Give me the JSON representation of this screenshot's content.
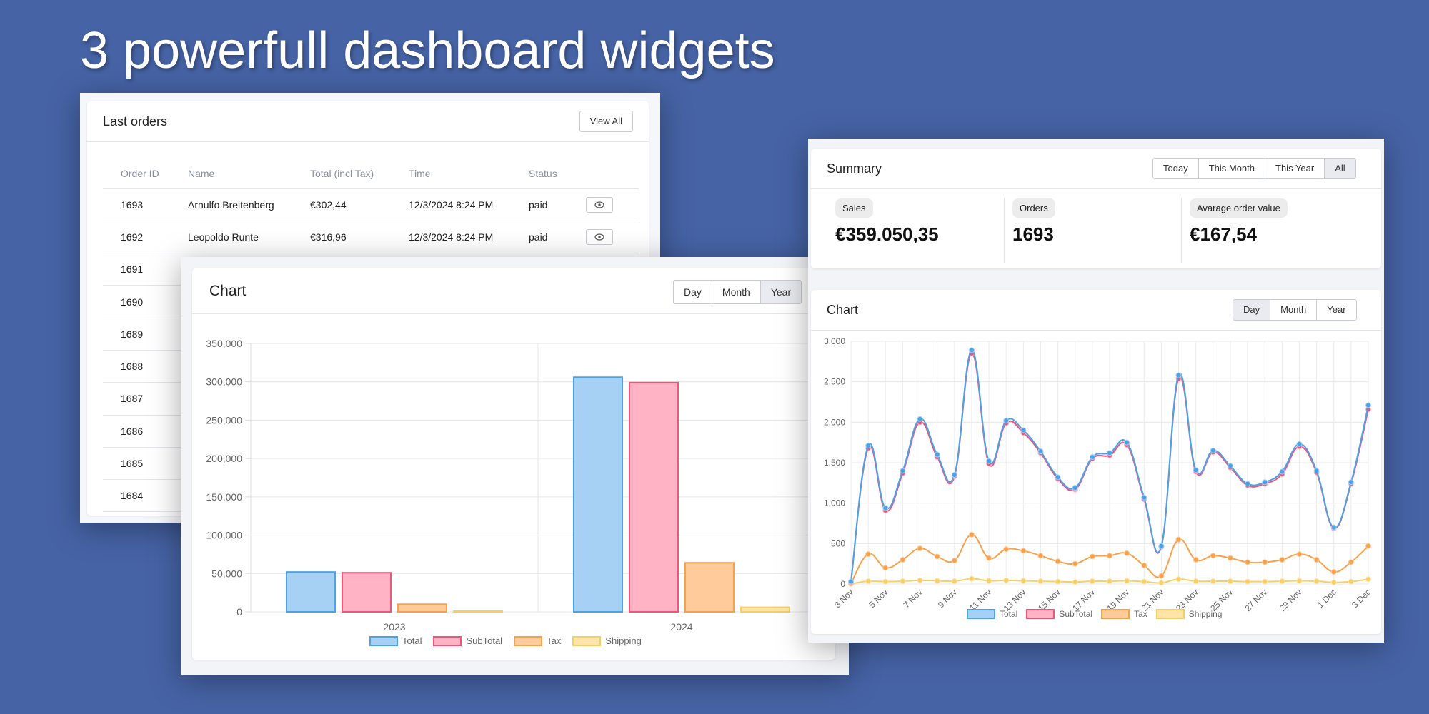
{
  "headline": "3 powerfull dashboard widgets",
  "orders": {
    "title": "Last orders",
    "view_all": "View All",
    "columns": [
      "Order ID",
      "Name",
      "Total (incl Tax)",
      "Time",
      "Status"
    ],
    "rows": [
      {
        "id": "1693",
        "name": "Arnulfo Breitenberg",
        "total": "€302,44",
        "time": "12/3/2024 8:24 PM",
        "status": "paid"
      },
      {
        "id": "1692",
        "name": "Leopoldo Runte",
        "total": "€316,96",
        "time": "12/3/2024 8:24 PM",
        "status": "paid"
      },
      {
        "id": "1691"
      },
      {
        "id": "1690"
      },
      {
        "id": "1689"
      },
      {
        "id": "1688"
      },
      {
        "id": "1687"
      },
      {
        "id": "1686"
      },
      {
        "id": "1685"
      },
      {
        "id": "1684"
      }
    ]
  },
  "bar_widget": {
    "title": "Chart",
    "tabs": [
      "Day",
      "Month",
      "Year"
    ],
    "active_tab": "Year"
  },
  "summary": {
    "title": "Summary",
    "tabs": [
      "Today",
      "This Month",
      "This Year",
      "All"
    ],
    "active_tab": "All",
    "stats": [
      {
        "label": "Sales",
        "value": "€359.050,35"
      },
      {
        "label": "Orders",
        "value": "1693"
      },
      {
        "label": "Avarage order value",
        "value": "€167,54"
      }
    ]
  },
  "line_widget": {
    "title": "Chart",
    "tabs": [
      "Day",
      "Month",
      "Year"
    ],
    "active_tab": "Day"
  },
  "colors": {
    "Total": {
      "fill": "#a6d1f5",
      "stroke": "#4aa3e6"
    },
    "SubTotal": {
      "fill": "#ffb3c4",
      "stroke": "#f0557a"
    },
    "Tax": {
      "fill": "#ffcb9a",
      "stroke": "#f7a14b"
    },
    "Shipping": {
      "fill": "#ffe6a8",
      "stroke": "#f7cf66"
    }
  },
  "chart_data": [
    {
      "type": "bar",
      "categories": [
        "2023",
        "2024"
      ],
      "series": [
        {
          "name": "Total",
          "values": [
            52000,
            306000
          ]
        },
        {
          "name": "SubTotal",
          "values": [
            51000,
            299000
          ]
        },
        {
          "name": "Tax",
          "values": [
            10000,
            64000
          ]
        },
        {
          "name": "Shipping",
          "values": [
            1000,
            6000
          ]
        }
      ],
      "ylim": [
        0,
        350000
      ],
      "yticks": [
        "0",
        "50,000",
        "100,000",
        "150,000",
        "200,000",
        "250,000",
        "300,000",
        "350,000"
      ],
      "legend": "bottom",
      "grid": true
    },
    {
      "type": "line",
      "x": [
        "3 Nov",
        "4 Nov",
        "5 Nov",
        "6 Nov",
        "7 Nov",
        "8 Nov",
        "9 Nov",
        "10 Nov",
        "11 Nov",
        "12 Nov",
        "13 Nov",
        "14 Nov",
        "15 Nov",
        "16 Nov",
        "17 Nov",
        "18 Nov",
        "19 Nov",
        "20 Nov",
        "21 Nov",
        "22 Nov",
        "23 Nov",
        "24 Nov",
        "25 Nov",
        "26 Nov",
        "27 Nov",
        "28 Nov",
        "29 Nov",
        "30 Nov",
        "1 Dec",
        "2 Dec",
        "3 Dec"
      ],
      "xtick_labels": [
        "3 Nov",
        "5 Nov",
        "7 Nov",
        "9 Nov",
        "11 Nov",
        "13 Nov",
        "15 Nov",
        "17 Nov",
        "19 Nov",
        "21 Nov",
        "23 Nov",
        "25 Nov",
        "27 Nov",
        "29 Nov",
        "1 Dec",
        "3 Dec"
      ],
      "series": [
        {
          "name": "Total",
          "values": [
            30,
            1710,
            940,
            1400,
            2040,
            1600,
            1350,
            2890,
            1520,
            2020,
            1900,
            1640,
            1320,
            1190,
            1570,
            1620,
            1750,
            1070,
            470,
            2580,
            1410,
            1650,
            1460,
            1240,
            1260,
            1390,
            1730,
            1400,
            700,
            1260,
            2210
          ]
        },
        {
          "name": "SubTotal",
          "values": [
            25,
            1680,
            910,
            1370,
            2000,
            1570,
            1330,
            2850,
            1490,
            1990,
            1870,
            1620,
            1300,
            1170,
            1550,
            1590,
            1720,
            1050,
            460,
            2540,
            1390,
            1630,
            1440,
            1220,
            1240,
            1360,
            1700,
            1380,
            690,
            1240,
            2160
          ]
        },
        {
          "name": "Tax",
          "values": [
            5,
            370,
            200,
            300,
            440,
            340,
            290,
            610,
            320,
            430,
            410,
            350,
            280,
            250,
            340,
            350,
            380,
            230,
            100,
            550,
            300,
            350,
            320,
            270,
            270,
            300,
            370,
            300,
            150,
            270,
            470
          ]
        },
        {
          "name": "Shipping",
          "values": [
            2,
            35,
            30,
            35,
            45,
            40,
            35,
            65,
            40,
            45,
            40,
            35,
            30,
            25,
            35,
            35,
            40,
            30,
            15,
            60,
            35,
            35,
            35,
            30,
            30,
            35,
            40,
            35,
            20,
            30,
            60
          ]
        }
      ],
      "ylim": [
        0,
        3000
      ],
      "yticks": [
        "0",
        "500",
        "1,000",
        "1,500",
        "2,000",
        "2,500",
        "3,000"
      ],
      "legend": "bottom",
      "grid": true
    }
  ]
}
